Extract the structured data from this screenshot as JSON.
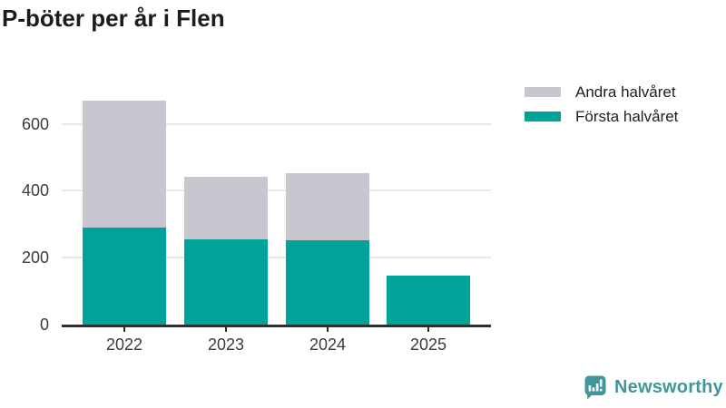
{
  "title": "P-böter per år i Flen",
  "legend": {
    "items": [
      {
        "label": "Andra halvåret",
        "color": "#c9c6d0"
      },
      {
        "label": "Första halvåret",
        "color": "#00a29a"
      }
    ]
  },
  "chart_data": {
    "type": "bar",
    "stacked": true,
    "title": "P-böter per år i Flen",
    "categories": [
      "2022",
      "2023",
      "2024",
      "2025"
    ],
    "series": [
      {
        "name": "Första halvåret",
        "color": "#00a29a",
        "values": [
          290,
          255,
          252,
          145
        ]
      },
      {
        "name": "Andra halvåret",
        "color": "#c9c6d0",
        "values": [
          380,
          187,
          200,
          0
        ]
      }
    ],
    "totals": [
      670,
      442,
      452,
      145
    ],
    "xlabel": "",
    "ylabel": "",
    "ylim": [
      0,
      700
    ],
    "yticks": [
      0,
      200,
      400,
      600
    ],
    "grid": true,
    "legend_position": "top-right",
    "axis_color": "#2f2f2f",
    "grid_color": "#e8e8e8",
    "tick_label_color": "#3b3b3b",
    "title_color": "#1c1c1a"
  },
  "branding": {
    "logo_text": "Newsworthy",
    "logo_icon": "newsworthy-speech-bubble-bar-chart-icon",
    "brand_color": "#42969a"
  }
}
